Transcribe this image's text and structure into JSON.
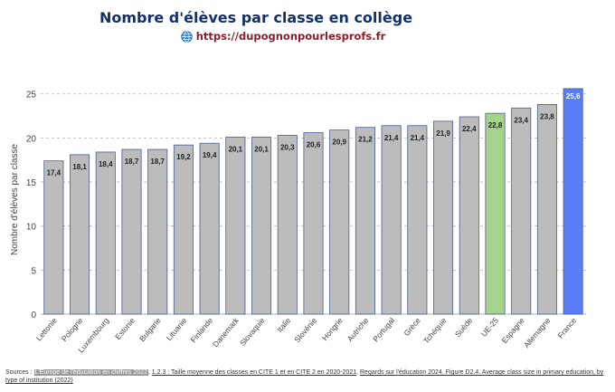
{
  "title": "Nombre d'élèves par classe en  collège",
  "source_link": "https://dupognonpourlesprofs.fr",
  "icons": {
    "link_icon": "globe-icon"
  },
  "colors": {
    "default_bar": "#bcbcbc",
    "eu_bar": "#a5d38a",
    "france_bar": "#5b7cf7",
    "bar_edge": "#4a5e8f"
  },
  "chart_data": {
    "type": "bar",
    "categories": [
      "Lettonie",
      "Pologne",
      "Luxembourg",
      "Estonie",
      "Bulgarie",
      "Lituanie",
      "Finlande",
      "Danemark",
      "Slovaquie",
      "Italie",
      "Slovénie",
      "Hongrie",
      "Autriche",
      "Portugal",
      "Grèce",
      "Tchéquie",
      "Suède",
      "UE-25",
      "Espagne",
      "Allemagne",
      "France"
    ],
    "values": [
      17.4,
      18.1,
      18.4,
      18.7,
      18.7,
      19.2,
      19.4,
      20.1,
      20.1,
      20.3,
      20.6,
      20.9,
      21.2,
      21.4,
      21.4,
      21.9,
      22.4,
      22.8,
      23.4,
      23.8,
      25.6
    ],
    "value_labels": [
      "17,4",
      "18,1",
      "18,4",
      "18,7",
      "18,7",
      "19,2",
      "19,4",
      "20,1",
      "20,1",
      "20,3",
      "20,6",
      "20,9",
      "21,2",
      "21,4",
      "21,4",
      "21,9",
      "22,4",
      "22,8",
      "23,4",
      "23,8",
      "25,6"
    ],
    "highlight": {
      "UE-25": "eu_bar",
      "France": "france_bar"
    },
    "xlabel": "",
    "ylabel": "Nombre d'élèves par classe",
    "ylim": [
      0,
      26
    ],
    "yticks": [
      0,
      5,
      10,
      15,
      20,
      25
    ],
    "grid": true
  },
  "sources": {
    "prefix": "Sources : ",
    "ref1": "L'Europe de l'éducation en chiffres 2022",
    "sep1": ", ",
    "ref2": "1.2.3 : Taille moyenne des classes en CITE 1 et en CITE 2 en 2020-2021",
    "sep2": ", ",
    "ref3": "Regards sur l'éducation 2024, Figure D2.4. Average class size in primary education, by type of institution (2022)"
  }
}
